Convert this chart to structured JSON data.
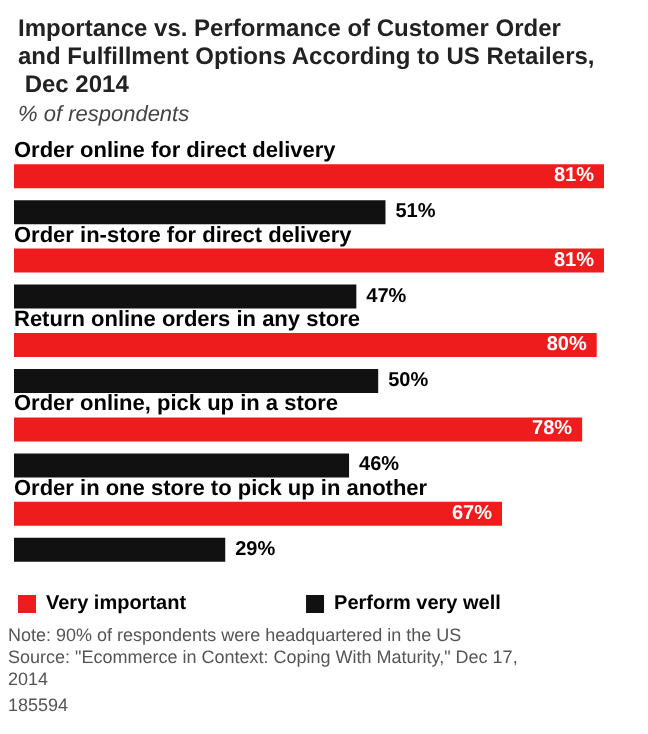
{
  "chart_data": {
    "type": "bar",
    "orientation": "horizontal",
    "title": "Importance vs. Performance of Customer Order and Fulfillment Options According to US Retailers, Dec 2014",
    "subtitle": "% of respondents",
    "categories": [
      "Order online for direct delivery",
      "Order in-store for direct delivery",
      "Return online orders in any store",
      "Order online, pick up in a store",
      "Order in one store to pick up in another"
    ],
    "series": [
      {
        "name": "Very important",
        "color": "#ee1c1c",
        "values": [
          81,
          81,
          80,
          78,
          67
        ],
        "value_labels": [
          "81%",
          "81%",
          "80%",
          "78%",
          "67%"
        ]
      },
      {
        "name": "Perform very well",
        "color": "#111111",
        "values": [
          51,
          47,
          50,
          46,
          29
        ],
        "value_labels": [
          "51%",
          "47%",
          "50%",
          "46%",
          "29%"
        ]
      }
    ],
    "legend": "bottom",
    "grid": false,
    "tick_labels": false,
    "annotations": [
      "Note: 90% of respondents were headquartered in the US",
      "Source: \"Ecommerce in Context: Coping With Maturity,\" Dec 17, 2014",
      "185594"
    ]
  }
}
